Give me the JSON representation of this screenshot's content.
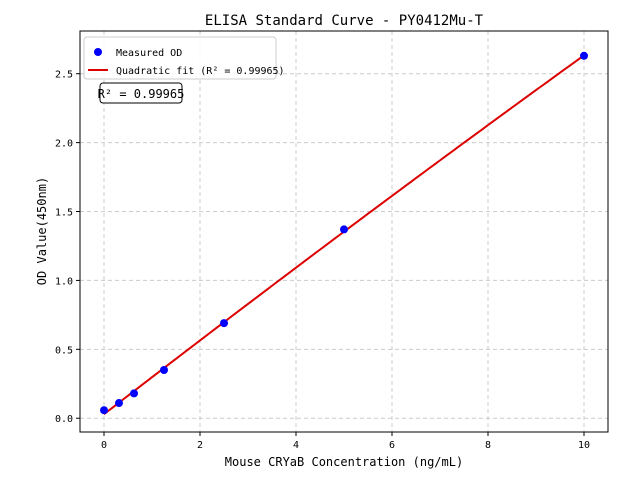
{
  "chart_data": {
    "type": "scatter",
    "title": "ELISA Standard Curve - PY0412Mu-T",
    "xlabel": "Mouse CRYaB Concentration (ng/mL)",
    "ylabel": "OD Value(450nm)",
    "xlim": [
      -0.5,
      10.5
    ],
    "ylim": [
      -0.1,
      2.81
    ],
    "xticks": [
      0,
      2,
      4,
      6,
      8,
      10
    ],
    "yticks": [
      0.0,
      0.5,
      1.0,
      1.5,
      2.0,
      2.5
    ],
    "ytick_labels": [
      "0.0",
      "0.5",
      "1.0",
      "1.5",
      "2.0",
      "2.5"
    ],
    "grid": true,
    "legend_placement": "upper-left",
    "series": [
      {
        "name": "Measured OD",
        "kind": "scatter",
        "color": "#0000ff",
        "x": [
          0,
          0.3125,
          0.625,
          1.25,
          2.5,
          5,
          10
        ],
        "y": [
          0.058,
          0.11,
          0.18,
          0.35,
          0.69,
          1.37,
          2.63
        ]
      },
      {
        "name": "Quadratic fit (R² = 0.99965)",
        "kind": "line",
        "color": "#dd0000"
      }
    ],
    "annotation": "R² = 0.99965"
  }
}
